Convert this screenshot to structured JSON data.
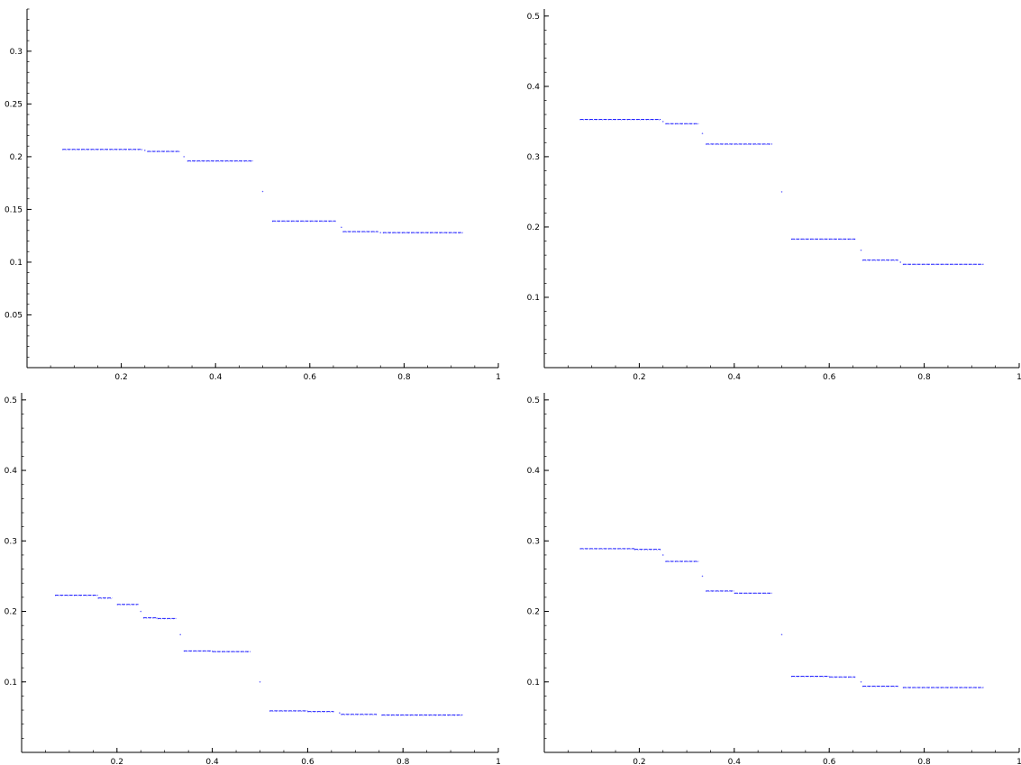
{
  "style": {
    "axis_color": "#000000",
    "point_color": "#0000ff",
    "background": "#ffffff"
  },
  "chart_data": [
    {
      "type": "scatter",
      "xlim": [
        0,
        1
      ],
      "ylim": [
        0,
        0.34
      ],
      "xticks": [
        0.2,
        0.4,
        0.6,
        0.8,
        1
      ],
      "xtick_labels": [
        "0.2",
        "0.4",
        "0.6",
        "0.8",
        "1"
      ],
      "yticks": [
        0.05,
        0.1,
        0.15,
        0.2,
        0.25,
        0.3
      ],
      "ytick_labels": [
        "0.05",
        "0.1",
        "0.15",
        "0.2",
        "0.25",
        "0.3"
      ],
      "xminor": 0.05,
      "yminor": 0.01,
      "grid": false,
      "segments": [
        {
          "x0": 0.075,
          "x1": 0.245,
          "y": 0.207
        },
        {
          "x0": 0.255,
          "x1": 0.325,
          "y": 0.205
        },
        {
          "x0": 0.34,
          "x1": 0.48,
          "y": 0.196
        },
        {
          "x0": 0.52,
          "x1": 0.655,
          "y": 0.139
        },
        {
          "x0": 0.67,
          "x1": 0.745,
          "y": 0.129
        },
        {
          "x0": 0.755,
          "x1": 0.925,
          "y": 0.128
        }
      ],
      "points": [
        [
          0.333,
          0.2
        ],
        [
          0.5,
          0.167
        ],
        [
          0.667,
          0.133
        ],
        [
          0.25,
          0.206
        ],
        [
          0.75,
          0.128
        ]
      ]
    },
    {
      "type": "scatter",
      "xlim": [
        0,
        1
      ],
      "ylim": [
        0,
        0.51
      ],
      "xticks": [
        0.2,
        0.4,
        0.6,
        0.8,
        1
      ],
      "xtick_labels": [
        "0.2",
        "0.4",
        "0.6",
        "0.8",
        "1"
      ],
      "yticks": [
        0.1,
        0.2,
        0.3,
        0.4,
        0.5
      ],
      "ytick_labels": [
        "0.1",
        "0.2",
        "0.3",
        "0.4",
        "0.5"
      ],
      "xminor": 0.05,
      "yminor": 0.02,
      "grid": false,
      "segments": [
        {
          "x0": 0.075,
          "x1": 0.245,
          "y": 0.353
        },
        {
          "x0": 0.255,
          "x1": 0.325,
          "y": 0.347
        },
        {
          "x0": 0.34,
          "x1": 0.48,
          "y": 0.318
        },
        {
          "x0": 0.52,
          "x1": 0.655,
          "y": 0.183
        },
        {
          "x0": 0.67,
          "x1": 0.745,
          "y": 0.153
        },
        {
          "x0": 0.755,
          "x1": 0.925,
          "y": 0.147
        }
      ],
      "points": [
        [
          0.333,
          0.333
        ],
        [
          0.5,
          0.25
        ],
        [
          0.667,
          0.167
        ],
        [
          0.25,
          0.35
        ],
        [
          0.75,
          0.15
        ]
      ]
    },
    {
      "type": "scatter",
      "xlim": [
        0,
        1
      ],
      "ylim": [
        0,
        0.51
      ],
      "xticks": [
        0.2,
        0.4,
        0.6,
        0.8,
        1
      ],
      "xtick_labels": [
        "0.2",
        "0.4",
        "0.6",
        "0.8",
        "1"
      ],
      "yticks": [
        0.1,
        0.2,
        0.3,
        0.4,
        0.5
      ],
      "ytick_labels": [
        "0.1",
        "0.2",
        "0.3",
        "0.4",
        "0.5"
      ],
      "xminor": 0.05,
      "yminor": 0.02,
      "grid": false,
      "segments": [
        {
          "x0": 0.07,
          "x1": 0.16,
          "y": 0.223
        },
        {
          "x0": 0.16,
          "x1": 0.19,
          "y": 0.219
        },
        {
          "x0": 0.2,
          "x1": 0.245,
          "y": 0.21
        },
        {
          "x0": 0.255,
          "x1": 0.285,
          "y": 0.191
        },
        {
          "x0": 0.285,
          "x1": 0.325,
          "y": 0.19
        },
        {
          "x0": 0.34,
          "x1": 0.4,
          "y": 0.144
        },
        {
          "x0": 0.4,
          "x1": 0.48,
          "y": 0.143
        },
        {
          "x0": 0.52,
          "x1": 0.6,
          "y": 0.059
        },
        {
          "x0": 0.6,
          "x1": 0.655,
          "y": 0.058
        },
        {
          "x0": 0.67,
          "x1": 0.745,
          "y": 0.054
        },
        {
          "x0": 0.755,
          "x1": 0.925,
          "y": 0.053
        }
      ],
      "points": [
        [
          0.333,
          0.167
        ],
        [
          0.5,
          0.1
        ],
        [
          0.25,
          0.2
        ],
        [
          0.667,
          0.056
        ]
      ]
    },
    {
      "type": "scatter",
      "xlim": [
        0,
        1
      ],
      "ylim": [
        0,
        0.51
      ],
      "xticks": [
        0.2,
        0.4,
        0.6,
        0.8,
        1
      ],
      "xtick_labels": [
        "0.2",
        "0.4",
        "0.6",
        "0.8",
        "1"
      ],
      "yticks": [
        0.1,
        0.2,
        0.3,
        0.4,
        0.5
      ],
      "ytick_labels": [
        "0.1",
        "0.2",
        "0.3",
        "0.4",
        "0.5"
      ],
      "xminor": 0.05,
      "yminor": 0.02,
      "grid": false,
      "segments": [
        {
          "x0": 0.075,
          "x1": 0.19,
          "y": 0.289
        },
        {
          "x0": 0.19,
          "x1": 0.245,
          "y": 0.288
        },
        {
          "x0": 0.255,
          "x1": 0.325,
          "y": 0.271
        },
        {
          "x0": 0.34,
          "x1": 0.4,
          "y": 0.229
        },
        {
          "x0": 0.4,
          "x1": 0.48,
          "y": 0.226
        },
        {
          "x0": 0.52,
          "x1": 0.6,
          "y": 0.108
        },
        {
          "x0": 0.6,
          "x1": 0.655,
          "y": 0.107
        },
        {
          "x0": 0.67,
          "x1": 0.745,
          "y": 0.094
        },
        {
          "x0": 0.755,
          "x1": 0.925,
          "y": 0.092
        }
      ],
      "points": [
        [
          0.333,
          0.25
        ],
        [
          0.5,
          0.167
        ],
        [
          0.25,
          0.28
        ],
        [
          0.667,
          0.1
        ]
      ]
    }
  ]
}
